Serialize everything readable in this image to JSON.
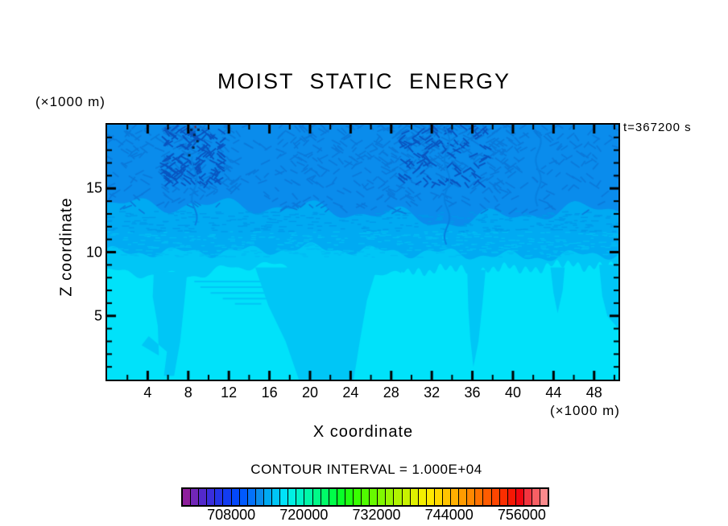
{
  "title": "MOIST STATIC ENERGY",
  "labels": {
    "y_axis_unit": "(×1000 m)",
    "x_axis_unit": "(×1000 m)",
    "time": "t=367200 s",
    "x_axis": "X coordinate",
    "y_axis": "Z coordinate",
    "contour_interval": "CONTOUR INTERVAL = 1.000E+04"
  },
  "chart_data": {
    "type": "heatmap",
    "title": "MOIST STATIC ENERGY",
    "xlabel": "X coordinate",
    "ylabel": "Z coordinate",
    "time_annotation": "t=367200 s",
    "contour_interval": 10000,
    "x_axis": {
      "min": 0,
      "max": 50.4,
      "unit": "(×1000 m)",
      "major_ticks": [
        4,
        8,
        12,
        16,
        20,
        24,
        28,
        32,
        36,
        40,
        44,
        48
      ],
      "minor_ticks": [
        2,
        6,
        10,
        14,
        18,
        22,
        26,
        30,
        34,
        38,
        42,
        46,
        50
      ]
    },
    "z_axis": {
      "min": 0,
      "max": 20,
      "unit": "(×1000 m)",
      "major_ticks": [
        5,
        10,
        15
      ],
      "minor_ticks": [
        1,
        2,
        3,
        4,
        6,
        7,
        8,
        9,
        11,
        12,
        13,
        14,
        16,
        17,
        18,
        19
      ]
    },
    "colorbar": {
      "min": 700000,
      "max": 760000,
      "tick_values": [
        708000,
        720000,
        732000,
        744000,
        756000
      ],
      "tick_labels": [
        "708000",
        "720000",
        "732000",
        "744000",
        "756000"
      ],
      "colors": [
        "#8e1f9c",
        "#7127b8",
        "#5329cc",
        "#3a2edc",
        "#2434e8",
        "#123cf2",
        "#0348fa",
        "#005aff",
        "#0472fa",
        "#0a8cec",
        "#00aaf2",
        "#00c6f6",
        "#00e2fa",
        "#00f0e4",
        "#00f4c8",
        "#00f8a8",
        "#00fa88",
        "#00fc68",
        "#00fe48",
        "#08ff28",
        "#20ff10",
        "#38ff00",
        "#50fc00",
        "#68fa00",
        "#80f800",
        "#98f600",
        "#b0f400",
        "#c8f200",
        "#e0f000",
        "#f4ee00",
        "#ffe800",
        "#ffd800",
        "#ffc400",
        "#ffb000",
        "#ff9c00",
        "#ff8800",
        "#ff7200",
        "#ff5c00",
        "#ff4600",
        "#fb2e00",
        "#f51804",
        "#ef0710",
        "#f33540",
        "#f75f64",
        "#fb8a8c"
      ]
    },
    "field": {
      "seed": 1337,
      "bands": [
        {
          "name": "upper-blue",
          "color": "#0a8cec",
          "approx_z_range": [
            13.3,
            20
          ]
        },
        {
          "name": "mid-blue",
          "color": "#00aaf2",
          "approx_z_range": [
            10,
            13.3
          ],
          "boundary": {
            "base": 13.35,
            "components": [
              [
                0.5,
                9.0,
                0.3
              ],
              [
                0.28,
                4.2,
                2.1
              ]
            ],
            "bumps": [
              [
                5,
                3,
                0.5
              ],
              [
                34,
                5,
                -0.9
              ],
              [
                14,
                2.5,
                0.35
              ]
            ]
          }
        },
        {
          "name": "light-blue",
          "color": "#00c6f6",
          "approx_z_range": [
            8.2,
            10
          ],
          "boundary": {
            "base": 10.0,
            "components": [
              [
                0.3,
                6.5,
                1.0
              ],
              [
                0.18,
                2.8,
                0.4
              ]
            ],
            "bumps": [
              [
                20,
                4,
                0.3
              ],
              [
                42,
                5,
                -0.35
              ]
            ]
          }
        },
        {
          "name": "cyan",
          "color": "#00e2fa",
          "approx_z_range": [
            0,
            8.2
          ],
          "boundary": {
            "base": 8.2,
            "components": [
              [
                0.22,
                5.5,
                0.8
              ],
              [
                0.12,
                2.2,
                2.0
              ]
            ],
            "bumps": [
              [
                15.5,
                1.6,
                1.0
              ],
              [
                11.5,
                1.0,
                0.5
              ],
              [
                1.0,
                1.4,
                0.3
              ],
              [
                47,
                4,
                0.4
              ]
            ],
            "fingers": {
              "from": 29,
              "amp": 0.5,
              "wavelength": 1.05,
              "raise": 0.15
            }
          }
        }
      ],
      "plumes": {
        "color": "#00c6f6",
        "shapes": [
          [
            [
              4.6,
              8.4
            ],
            [
              7.9,
              8.5
            ],
            [
              7.6,
              6.0
            ],
            [
              7.2,
              3.0
            ],
            [
              6.6,
              0.3
            ],
            [
              5.6,
              0.3
            ],
            [
              5.9,
              2.2
            ],
            [
              4.1,
              3.4
            ],
            [
              3.4,
              2.7
            ],
            [
              5.1,
              1.9
            ],
            [
              5.0,
              4.2
            ],
            [
              4.5,
              6.5
            ]
          ],
          [
            [
              14.6,
              8.8
            ],
            [
              26.6,
              8.8
            ],
            [
              25.6,
              6.2
            ],
            [
              24.9,
              3.0
            ],
            [
              24.3,
              0.0
            ],
            [
              18.9,
              0.0
            ],
            [
              17.6,
              3.0
            ],
            [
              15.9,
              5.8
            ]
          ],
          [
            [
              35.5,
              8.6
            ],
            [
              37.3,
              8.6
            ],
            [
              37.0,
              6.0
            ],
            [
              36.6,
              3.0
            ],
            [
              36.1,
              1.0
            ],
            [
              35.8,
              3.2
            ],
            [
              35.6,
              5.6
            ]
          ],
          [
            [
              43.7,
              8.8
            ],
            [
              45.1,
              8.8
            ],
            [
              44.9,
              7.0
            ],
            [
              44.4,
              5.2
            ],
            [
              44.0,
              6.8
            ]
          ],
          [
            [
              48.5,
              9.0
            ],
            [
              50.4,
              9.0
            ],
            [
              50.4,
              4.0
            ],
            [
              49.3,
              5.0
            ],
            [
              48.8,
              6.6
            ]
          ]
        ]
      },
      "streaks": {
        "color": "#00c6f6",
        "width": 2,
        "lines": [
          [
            8.6,
            7.7,
            19.8
          ],
          [
            9.2,
            7.25,
            19.3
          ],
          [
            10.2,
            6.8,
            18.0
          ],
          [
            11.4,
            6.35,
            16.0
          ],
          [
            12.6,
            5.95,
            15.2
          ]
        ]
      },
      "texture": {
        "upper_color": "#0b79da",
        "upper_count": 1500,
        "dark_color": "#0a55c0",
        "dark_count": 260,
        "mottle_light_color": "#00bcf4",
        "mottle_light_count": 420,
        "mottle_dark_color": "#0099ea",
        "mottle_dark_count": 300,
        "zones": [
          [
            2,
            13,
            0.75
          ],
          [
            17,
            27,
            0.6
          ],
          [
            27,
            40,
            0.95
          ],
          [
            40,
            50.4,
            0.5
          ]
        ],
        "base_density": 0.28
      },
      "wisps": {
        "color": "#0880e0",
        "width": 2,
        "items": [
          [
            33.5,
            19.8,
            10.5
          ],
          [
            8.6,
            17.5,
            12.0
          ],
          [
            42.5,
            19.5,
            13.5
          ]
        ]
      },
      "spots": {
        "dark_color": "#04264e",
        "red_color": "#7a1a2a",
        "dark": [
          [
            8.3,
            19.6
          ],
          [
            8.6,
            19.2
          ],
          [
            8.9,
            18.7
          ],
          [
            8.5,
            18.2
          ],
          [
            8.1,
            17.6
          ],
          [
            9.0,
            19.6
          ]
        ],
        "red": [
          [
            8.7,
            19.85
          ]
        ]
      }
    },
    "legend_position": "bottom",
    "grid": false
  }
}
